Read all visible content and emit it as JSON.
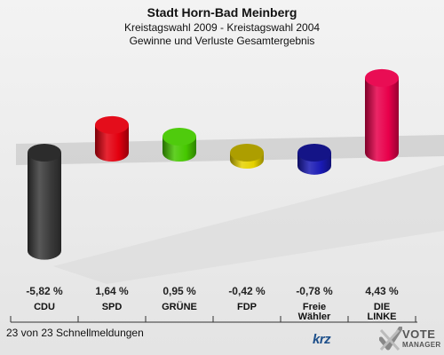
{
  "chart_data": {
    "type": "bar",
    "title": "Stadt Horn-Bad Meinberg",
    "subtitle_line1": "Kreistagswahl 2009 - Kreistagswahl 2004",
    "subtitle_line2": "Gewinne und Verluste Gesamtergebnis",
    "categories": [
      "CDU",
      "SPD",
      "GRÜNE",
      "FDP",
      "Freie Wähler",
      "DIE LINKE"
    ],
    "category_labels": [
      [
        "CDU"
      ],
      [
        "SPD"
      ],
      [
        "GRÜNE"
      ],
      [
        "FDP"
      ],
      [
        "Freie",
        "Wähler"
      ],
      [
        "DIE",
        "LINKE"
      ]
    ],
    "values": [
      -5.82,
      1.64,
      0.95,
      -0.42,
      -0.78,
      4.43
    ],
    "value_labels": [
      "-5,82 %",
      "1,64 %",
      "0,95 %",
      "-0,42 %",
      "-0,78 %",
      "4,43 %"
    ],
    "colors": [
      "#3a3a3a",
      "#e3000f",
      "#46c800",
      "#e6d200",
      "#1a1ab4",
      "#e8004b"
    ],
    "ylim": [
      -6,
      5
    ],
    "grid": false,
    "legend": "none"
  },
  "footer": {
    "reporting": "23 von 23 Schnellmeldungen",
    "logo_krz": "krz",
    "logo_vote_line1": "VOTE",
    "logo_vote_line2": "MANAGER"
  }
}
